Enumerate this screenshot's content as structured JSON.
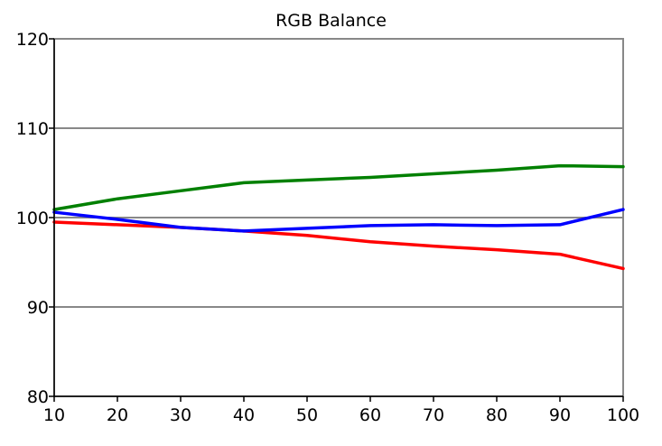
{
  "chart_data": {
    "type": "line",
    "title": "RGB Balance",
    "xlabel": "",
    "ylabel": "",
    "x": [
      10,
      20,
      30,
      40,
      50,
      60,
      70,
      80,
      90,
      100
    ],
    "xlim": [
      10,
      100
    ],
    "ylim": [
      80,
      120
    ],
    "xticks": [
      10,
      20,
      30,
      40,
      50,
      60,
      70,
      80,
      90,
      100
    ],
    "yticks": [
      80,
      90,
      100,
      110,
      120
    ],
    "grid": "horizontal",
    "legend": "none",
    "series": [
      {
        "color": "#ff0000",
        "values": [
          99.5,
          99.2,
          98.9,
          98.5,
          98.0,
          97.3,
          96.8,
          96.4,
          95.9,
          94.3
        ]
      },
      {
        "color": "#008000",
        "values": [
          100.9,
          102.1,
          103.0,
          103.9,
          104.2,
          104.5,
          104.9,
          105.3,
          105.8,
          105.7
        ]
      },
      {
        "color": "#0000ff",
        "values": [
          100.6,
          99.8,
          98.9,
          98.5,
          98.8,
          99.1,
          99.2,
          99.1,
          99.2,
          100.9
        ]
      }
    ]
  }
}
